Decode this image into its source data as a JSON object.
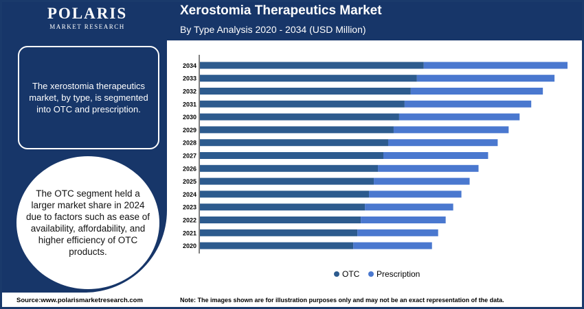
{
  "brand": {
    "name": "POLARIS",
    "sub": "MARKET RESEARCH"
  },
  "header": {
    "title": "Xerostomia Therapeutics Market",
    "subtitle": "By Type Analysis 2020 - 2034 (USD Million)"
  },
  "sidebar": {
    "box_text": "The xerostomia therapeutics market, by type, is segmented into OTC and prescription.",
    "circle_text": "The OTC segment held a larger market share in 2024 due to factors such as ease of availability, affordability, and higher efficiency of OTC products."
  },
  "footer": {
    "source": "Source:www.polarismarketresearch.com",
    "note": "Note: The images shown are for illustration purposes only and may not be an exact representation of the data."
  },
  "colors": {
    "navy": "#173669",
    "otc": "#2d5b8e",
    "prescription": "#4a78cf"
  },
  "chart_data": {
    "type": "bar",
    "orientation": "horizontal",
    "stacked": true,
    "categories": [
      "2034",
      "2033",
      "2032",
      "2031",
      "2030",
      "2029",
      "2028",
      "2027",
      "2026",
      "2025",
      "2024",
      "2023",
      "2022",
      "2021",
      "2020"
    ],
    "series": [
      {
        "name": "OTC",
        "values": [
          327,
          317,
          308,
          299,
          291,
          283,
          275,
          268,
          260,
          254,
          247,
          241,
          235,
          230,
          224
        ]
      },
      {
        "name": "Prescription",
        "values": [
          210,
          201,
          193,
          185,
          176,
          168,
          160,
          153,
          147,
          140,
          135,
          129,
          124,
          118,
          115
        ]
      }
    ],
    "xlim": [
      0,
      540
    ],
    "legend": "bottom-center",
    "grid": false
  }
}
